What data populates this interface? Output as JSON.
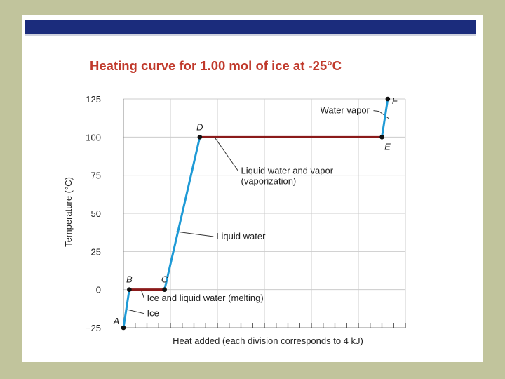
{
  "colors": {
    "background": "#c1c49c",
    "slide": "#ffffff",
    "header_bar": "#1b2c7c",
    "title": "#c0392b",
    "sloped_segment": "#1e9ad6",
    "plateau_segment": "#8b1a1a",
    "grid": "#cccccc"
  },
  "chart_data": {
    "type": "line",
    "title": "Heating curve for 1.00 mol of ice at -25°C",
    "xlabel": "Heat added (each division corresponds to 4 kJ)",
    "ylabel": "Temperature (°C)",
    "ylim": [
      -25,
      125
    ],
    "yticks": [
      125,
      100,
      75,
      50,
      25,
      0,
      -25
    ],
    "ytick_labels": [
      "125",
      "100",
      "75",
      "50",
      "25",
      "0",
      "−25"
    ],
    "xlim": [
      0,
      48
    ],
    "x_division_kJ": 4,
    "grid": true,
    "points": [
      {
        "label": "A",
        "x": 0,
        "y": -25
      },
      {
        "label": "B",
        "x": 1,
        "y": 0
      },
      {
        "label": "C",
        "x": 7,
        "y": 0
      },
      {
        "label": "D",
        "x": 13,
        "y": 100
      },
      {
        "label": "E",
        "x": 44,
        "y": 100
      },
      {
        "label": "F",
        "x": 45,
        "y": 125
      }
    ],
    "segments": [
      {
        "from": "A",
        "to": "B",
        "kind": "sloped"
      },
      {
        "from": "B",
        "to": "C",
        "kind": "plateau"
      },
      {
        "from": "C",
        "to": "D",
        "kind": "sloped"
      },
      {
        "from": "D",
        "to": "E",
        "kind": "plateau"
      },
      {
        "from": "E",
        "to": "F",
        "kind": "sloped"
      }
    ],
    "annotations": [
      {
        "lines": [
          "Water vapor"
        ],
        "target_x": 45,
        "target_y": 112,
        "text_x": 33.5,
        "text_y": 115.5,
        "anchor": "start",
        "end_x": 42.8
      },
      {
        "lines": [
          "Liquid water and vapor",
          "(vaporization)"
        ],
        "target_x": 15.5,
        "target_y": 100,
        "text_x": 20,
        "text_y": 76,
        "anchor": "start"
      },
      {
        "lines": [
          "Liquid water"
        ],
        "target_x": 9,
        "target_y": 38,
        "text_x": 15.8,
        "text_y": 33,
        "anchor": "start"
      },
      {
        "lines": [
          "Ice and liquid water (melting)"
        ],
        "target_x": 3,
        "target_y": 0,
        "text_x": 4,
        "text_y": -7.5,
        "anchor": "start"
      },
      {
        "lines": [
          "Ice"
        ],
        "target_x": 0.5,
        "target_y": -13,
        "text_x": 4,
        "text_y": -17.5,
        "anchor": "start"
      }
    ]
  }
}
